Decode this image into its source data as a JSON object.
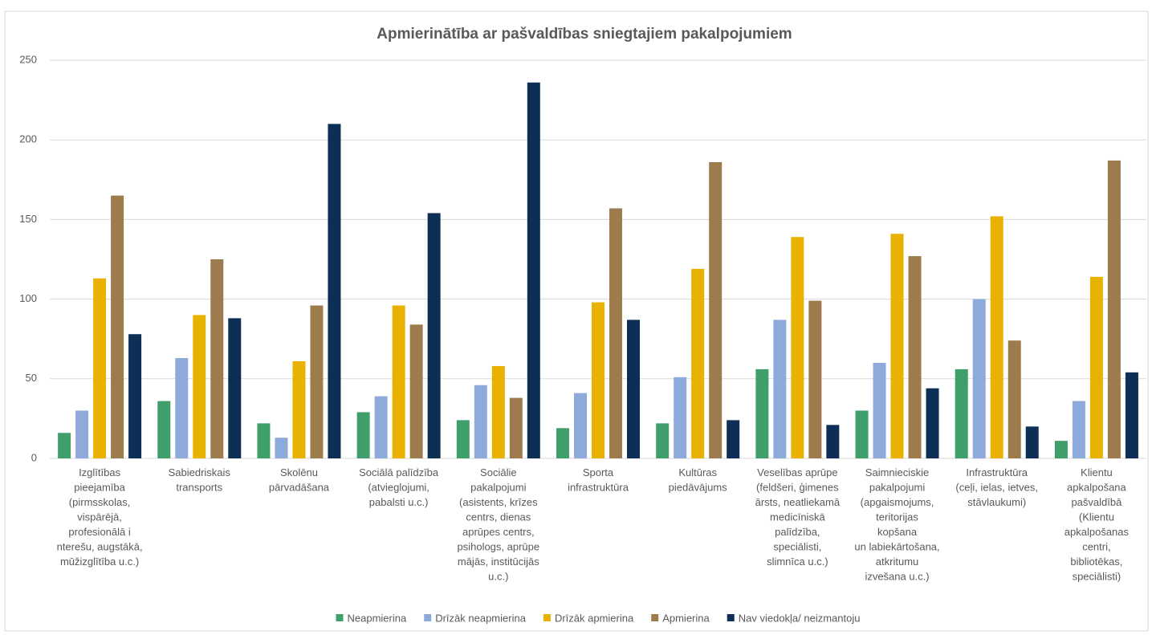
{
  "chart_data": {
    "type": "bar",
    "title": "Apmierinātība ar pašvaldības sniegtajiem pakalpojumiem",
    "categories": [
      "Izglītības\npieejamība\n(pirmsskolas,\nvispārējā,\nprofesionālā i\nnterešu, augstākā,\nmūžizglītība u.c.)",
      "Sabiedriskais\ntransports",
      "Skolēnu\npārvadāšana",
      "Sociālā palīdzība\n(atvieglojumi,\npabalsti u.c.)",
      "Sociālie\npakalpojumi\n(asistents, krīzes\ncentrs, dienas\naprūpes centrs,\npsihologs, aprūpe\nmājās, institūcijās\nu.c.)",
      "Sporta\ninfrastruktūra",
      "Kultūras\npiedāvājums",
      "Veselības aprūpe\n(feldšeri, ģimenes\nārsts, neatliekamā\nmedicīniskā\npalīdzība,\nspeciālisti,\nslimnīca u.c.)",
      "Saimnieciskie\npakalpojumi\n(apgaismojums,\nteritorijas\nkopšana\nun labiekārtošana,\natkritumu\nizvešana u.c.)",
      "Infrastruktūra\n(ceļi, ielas, ietves,\nstāvlaukumi)",
      "Klientu\napkalpošana\npašvaldībā\n(Klientu\napkalpošanas\ncentri,\nbibliotēkas,\nspeciālisti)"
    ],
    "series": [
      {
        "name": "Neapmierina",
        "color": "#3f9f6b",
        "values": [
          16,
          36,
          22,
          29,
          24,
          19,
          22,
          56,
          30,
          56,
          11
        ]
      },
      {
        "name": "Drīzāk neapmierina",
        "color": "#8eaadb",
        "values": [
          30,
          63,
          13,
          39,
          46,
          41,
          51,
          87,
          60,
          100,
          36
        ]
      },
      {
        "name": "Drīzāk apmierina",
        "color": "#eab200",
        "values": [
          113,
          90,
          61,
          96,
          58,
          98,
          119,
          139,
          141,
          152,
          114
        ]
      },
      {
        "name": "Apmierina",
        "color": "#9e7b4d",
        "values": [
          165,
          125,
          96,
          84,
          38,
          157,
          186,
          99,
          127,
          74,
          187
        ]
      },
      {
        "name": "Nav viedokļa/ neizmantoju",
        "color": "#0d2e55",
        "values": [
          78,
          88,
          210,
          154,
          236,
          87,
          24,
          21,
          44,
          20,
          54
        ]
      }
    ],
    "ylim": [
      0,
      250
    ],
    "yticks": [
      0,
      50,
      100,
      150,
      200,
      250
    ],
    "grid": true,
    "legend": "bottom"
  }
}
